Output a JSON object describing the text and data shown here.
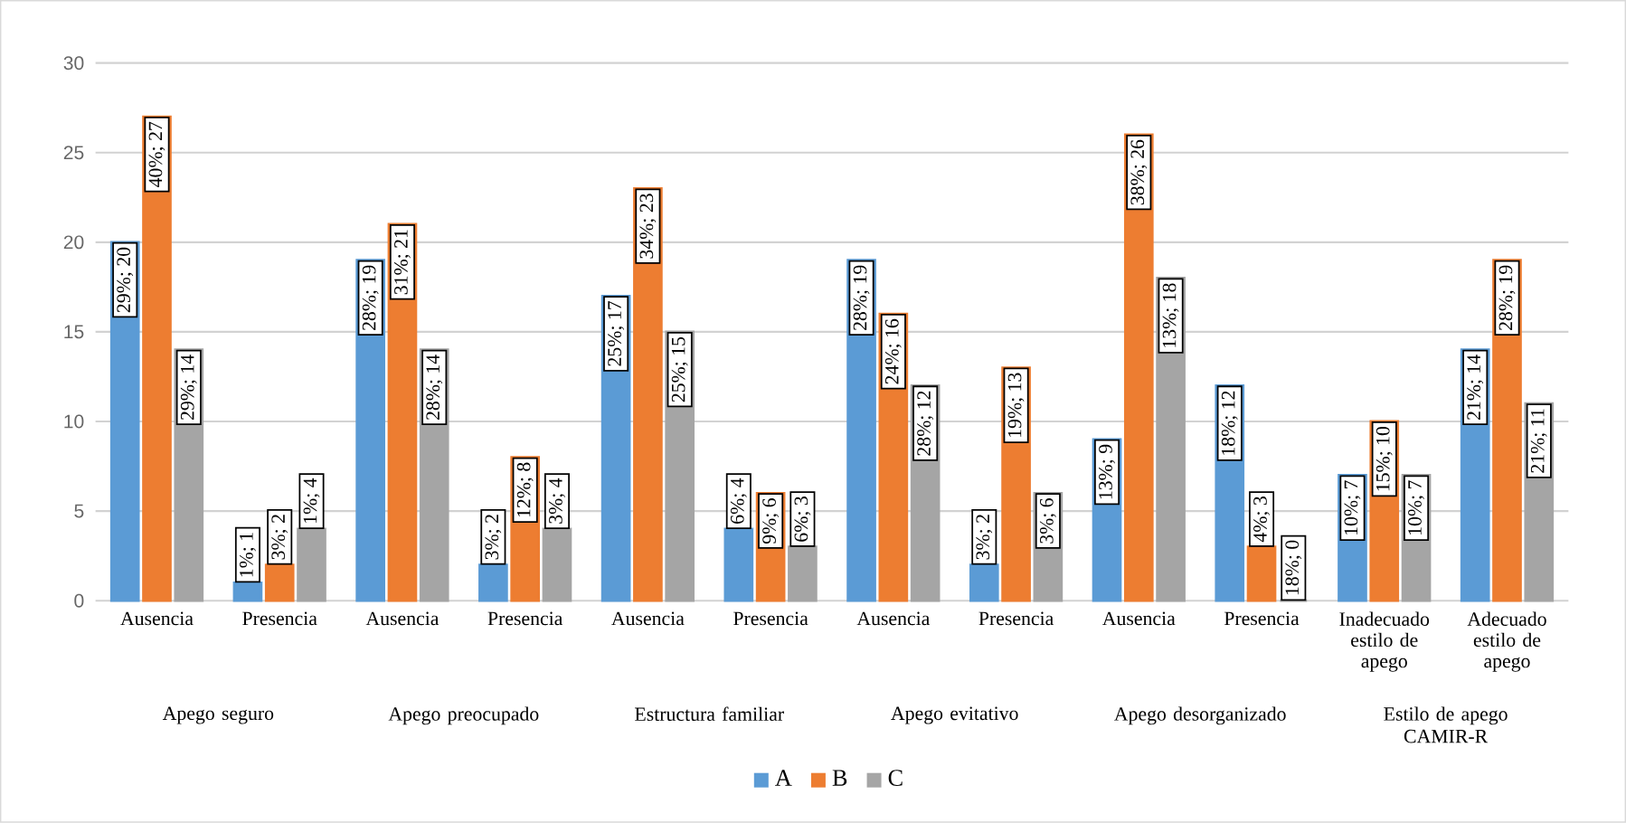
{
  "chart_data": {
    "type": "bar",
    "categories": [
      "Ausencia",
      "Presencia",
      "Ausencia",
      "Presencia",
      "Ausencia",
      "Presencia",
      "Ausencia",
      "Presencia",
      "Ausencia",
      "Presencia",
      "Inadecuado estilo de apego",
      "Adecuado estilo de apego"
    ],
    "annotations": [
      "Apego seguro",
      "Apego preocupado",
      "Estructura familiar",
      "Apego evitativo",
      "Apego desorganizado",
      "Estilo de apego CAMIR-R"
    ],
    "series": [
      {
        "name": "A",
        "color": "#5b9bd5",
        "values": [
          20,
          1,
          19,
          2,
          17,
          4,
          19,
          2,
          9,
          12,
          7,
          14
        ],
        "value_labels": [
          "29%; 20",
          "1%; 1",
          "28%; 19",
          "3%; 2",
          "25%; 17",
          "6%; 4",
          "28%; 19",
          "3%; 2",
          "13%; 9",
          "18%; 12",
          "10%; 7",
          "21%; 14"
        ]
      },
      {
        "name": "B",
        "color": "#ed7d31",
        "values": [
          27,
          2,
          21,
          8,
          23,
          6,
          16,
          13,
          26,
          3,
          10,
          19
        ],
        "value_labels": [
          "40%; 27",
          "3%; 2",
          "31%; 21",
          "12%; 8",
          "34%; 23",
          "9%; 6",
          "24%; 16",
          "19%; 13",
          "38%; 26",
          "4%; 3",
          "15%; 10",
          "28%; 19"
        ]
      },
      {
        "name": "C",
        "color": "#a5a5a5",
        "values": [
          14,
          4,
          14,
          4,
          15,
          3,
          12,
          6,
          18,
          0,
          7,
          11
        ],
        "value_labels": [
          "29%; 14",
          "1%; 4",
          "28%; 14",
          "3%; 4",
          "25%; 15",
          "6%; 3",
          "28%; 12",
          "3%; 6",
          "13%; 18",
          "18%; 0",
          "10%; 7",
          "21%; 11"
        ]
      }
    ],
    "ylim": [
      0,
      30
    ],
    "yticks": [
      0,
      5,
      10,
      15,
      20,
      25,
      30
    ],
    "grid": "y",
    "legend": "bottom"
  }
}
